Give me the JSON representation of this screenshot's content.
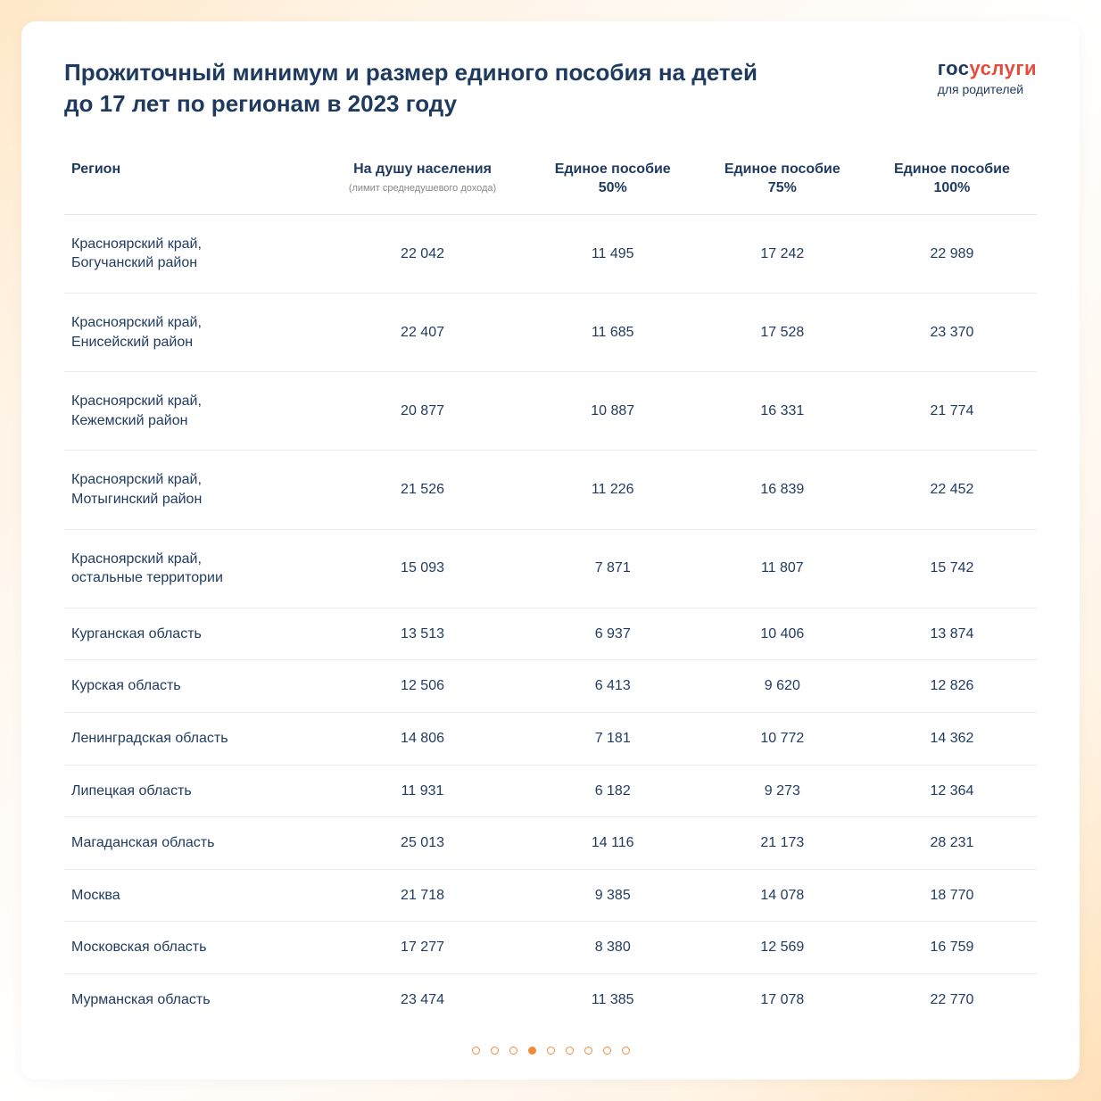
{
  "header": {
    "title_line1": "Прожиточный минимум и размер единого пособия на детей",
    "title_line2": "до 17 лет по регионам в 2023 году",
    "logo_part1": "гос",
    "logo_part2": "услуги",
    "logo_sub": "для родителей"
  },
  "table": {
    "columns": [
      {
        "label": "Регион",
        "sub": ""
      },
      {
        "label": "На душу населения",
        "sub": "(лимит среднедушевого дохода)"
      },
      {
        "label": "Единое пособие 50%",
        "sub": ""
      },
      {
        "label": "Единое пособие 75%",
        "sub": ""
      },
      {
        "label": "Единое пособие 100%",
        "sub": ""
      }
    ],
    "rows": [
      {
        "region": "Красноярский край, Богучанский район",
        "per_capita": "22 042",
        "b50": "11 495",
        "b75": "17 242",
        "b100": "22 989",
        "multiline": true
      },
      {
        "region": "Красноярский край, Енисейский район",
        "per_capita": "22 407",
        "b50": "11 685",
        "b75": "17 528",
        "b100": "23 370",
        "multiline": true
      },
      {
        "region": "Красноярский край, Кежемский район",
        "per_capita": "20 877",
        "b50": "10 887",
        "b75": "16 331",
        "b100": "21 774",
        "multiline": true
      },
      {
        "region": "Красноярский край, Мотыгинский район",
        "per_capita": "21 526",
        "b50": "11 226",
        "b75": "16 839",
        "b100": "22 452",
        "multiline": true
      },
      {
        "region": "Красноярский край, остальные территории",
        "per_capita": "15 093",
        "b50": "7 871",
        "b75": "11 807",
        "b100": "15 742",
        "multiline": true
      },
      {
        "region": "Курганская область",
        "per_capita": "13 513",
        "b50": "6 937",
        "b75": "10 406",
        "b100": "13 874",
        "multiline": false
      },
      {
        "region": "Курская область",
        "per_capita": "12 506",
        "b50": "6 413",
        "b75": "9 620",
        "b100": "12 826",
        "multiline": false
      },
      {
        "region": "Ленинградская область",
        "per_capita": "14 806",
        "b50": "7 181",
        "b75": "10 772",
        "b100": "14 362",
        "multiline": false
      },
      {
        "region": "Липецкая область",
        "per_capita": "11 931",
        "b50": "6 182",
        "b75": "9 273",
        "b100": "12 364",
        "multiline": false
      },
      {
        "region": "Магаданская область",
        "per_capita": "25 013",
        "b50": "14 116",
        "b75": "21 173",
        "b100": "28 231",
        "multiline": false
      },
      {
        "region": "Москва",
        "per_capita": "21 718",
        "b50": "9 385",
        "b75": "14 078",
        "b100": "18 770",
        "multiline": false
      },
      {
        "region": "Московская область",
        "per_capita": "17 277",
        "b50": "8 380",
        "b75": "12 569",
        "b100": "16 759",
        "multiline": false
      },
      {
        "region": "Мурманская область",
        "per_capita": "23 474",
        "b50": "11 385",
        "b75": "17 078",
        "b100": "22 770",
        "multiline": false
      }
    ]
  },
  "pager": {
    "total": 9,
    "active_index": 3
  },
  "colors": {
    "text_primary": "#1e3a5f",
    "accent_red": "#e64b3c",
    "border": "#ececec",
    "dot_border": "#f08b3c",
    "background_card": "#ffffff"
  }
}
